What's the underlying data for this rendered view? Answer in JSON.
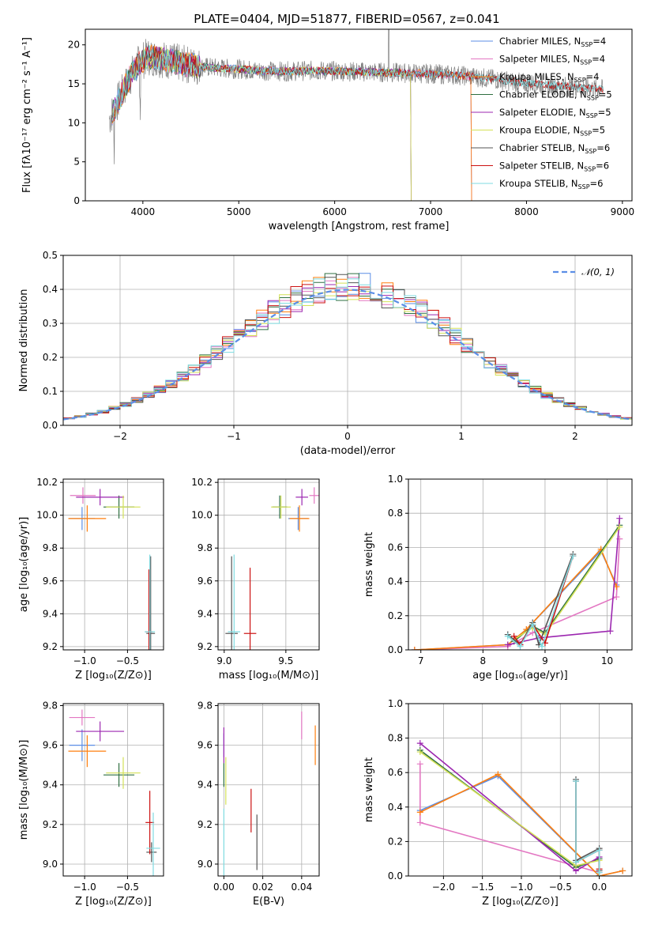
{
  "figure_title": "PLATE=0404, MJD=51877, FIBERID=0567, z=0.041",
  "colors": {
    "Chabrier MILES": "#5b8ee6",
    "Salpeter MILES": "#e377c2",
    "Kroupa MILES": "#ff7f0e",
    "Chabrier ELODIE": "#2e6f40",
    "Salpeter ELODIE": "#9c27b0",
    "Kroupa ELODIE": "#d4e157",
    "Chabrier STELIB": "#555555",
    "Salpeter STELIB": "#cc1111",
    "Kroupa STELIB": "#7fdbe0",
    "data": "#808080",
    "normal": "#5b8ee6"
  },
  "chart_data": [
    {
      "id": "spectrum",
      "type": "line",
      "title": "PLATE=0404, MJD=51877, FIBERID=0567, z=0.041",
      "xlabel": "wavelength [Angstrom, rest frame]",
      "ylabel": "Flux [fλ10⁻¹⁷ erg cm⁻² s⁻¹ A⁻¹]",
      "xlim": [
        3400,
        9100
      ],
      "ylim": [
        0,
        22
      ],
      "xticks": [
        4000,
        5000,
        6000,
        7000,
        8000,
        9000
      ],
      "yticks": [
        0,
        5,
        10,
        15,
        20
      ],
      "grid": false,
      "legend_position": "top-right",
      "legend": [
        {
          "name": "Chabrier MILES",
          "nssp": "4"
        },
        {
          "name": "Salpeter MILES",
          "nssp": "4"
        },
        {
          "name": "Kroupa MILES",
          "nssp": "4"
        },
        {
          "name": "Chabrier ELODIE",
          "nssp": "5"
        },
        {
          "name": "Salpeter ELODIE",
          "nssp": "5"
        },
        {
          "name": "Kroupa ELODIE",
          "nssp": "5"
        },
        {
          "name": "Chabrier STELIB",
          "nssp": "6"
        },
        {
          "name": "Salpeter STELIB",
          "nssp": "6"
        },
        {
          "name": "Kroupa STELIB",
          "nssp": "6"
        }
      ],
      "continuum": {
        "x": [
          3650,
          3750,
          3850,
          3950,
          4050,
          4200,
          4400,
          4600,
          4800,
          5000,
          5200,
          5500,
          5800,
          6100,
          6400,
          6700,
          7000,
          7300,
          7600,
          7900,
          8200,
          8500,
          8800
        ],
        "y": [
          10.5,
          13.0,
          15.5,
          17.5,
          18.5,
          18.2,
          17.6,
          17.2,
          17.0,
          16.9,
          16.7,
          16.6,
          16.7,
          16.6,
          16.5,
          16.4,
          16.3,
          16.1,
          15.7,
          15.2,
          14.9,
          14.6,
          14.3
        ]
      },
      "series": [
        {
          "name": "Chabrier MILES",
          "x_end": 7420
        },
        {
          "name": "Salpeter MILES",
          "x_end": 7420
        },
        {
          "name": "Kroupa MILES",
          "x_end": 7420
        },
        {
          "name": "Chabrier ELODIE",
          "x_end": 6790
        },
        {
          "name": "Salpeter ELODIE",
          "x_end": 6790
        },
        {
          "name": "Kroupa ELODIE",
          "x_end": 6790
        },
        {
          "name": "Chabrier STELIB",
          "x_end": 8800
        },
        {
          "name": "Salpeter STELIB",
          "x_end": 8800
        },
        {
          "name": "Kroupa STELIB",
          "x_end": 8800
        }
      ]
    },
    {
      "id": "residuals",
      "type": "histogram",
      "xlabel": "(data-model)/error",
      "ylabel": "Normed distribution",
      "xlim": [
        -2.5,
        2.5
      ],
      "ylim": [
        0,
        0.5
      ],
      "xticks": [
        -2,
        -1,
        0,
        1,
        2
      ],
      "yticks": [
        0.0,
        0.1,
        0.2,
        0.3,
        0.4,
        0.5
      ],
      "grid": true,
      "legend_label": "𝒩(0, 1)",
      "legend_position": "top-right",
      "bin_width": 0.1,
      "bin_start": -2.5,
      "bins": 50
    },
    {
      "id": "z-age",
      "type": "errorbar",
      "xlabel": "Z [log₁₀(Z/Z⊙)]",
      "ylabel": "age  [log₁₀(age/yr)]",
      "xlim": [
        -1.25,
        -0.08
      ],
      "ylim": [
        9.18,
        10.22
      ],
      "xticks": [
        -1.0,
        -0.5
      ],
      "yticks": [
        9.2,
        9.4,
        9.6,
        9.8,
        10.0,
        10.2
      ],
      "grid": true,
      "points": [
        {
          "series": "Chabrier MILES",
          "x": -1.03,
          "y": 9.98,
          "xerr": 0.15,
          "yerr": 0.07
        },
        {
          "series": "Salpeter MILES",
          "x": -1.02,
          "y": 10.12,
          "xerr": 0.15,
          "yerr": 0.05
        },
        {
          "series": "Kroupa MILES",
          "x": -0.97,
          "y": 9.98,
          "xerr": 0.22,
          "yerr": 0.08
        },
        {
          "series": "Chabrier ELODIE",
          "x": -0.6,
          "y": 10.05,
          "xerr": 0.18,
          "yerr": 0.07
        },
        {
          "series": "Salpeter ELODIE",
          "x": -0.82,
          "y": 10.11,
          "xerr": 0.28,
          "yerr": 0.05
        },
        {
          "series": "Kroupa ELODIE",
          "x": -0.55,
          "y": 10.05,
          "xerr": 0.2,
          "yerr": 0.07
        },
        {
          "series": "Chabrier STELIB",
          "x": -0.23,
          "y": 9.28,
          "xerr": 0.05,
          "yerr": 0.47
        },
        {
          "series": "Salpeter STELIB",
          "x": -0.25,
          "y": 9.29,
          "xerr": 0.04,
          "yerr": 0.38
        },
        {
          "series": "Kroupa STELIB",
          "x": -0.24,
          "y": 9.29,
          "xerr": 0.06,
          "yerr": 0.47
        }
      ]
    },
    {
      "id": "mass-age",
      "type": "errorbar",
      "xlabel": "mass [log₁₀(M/M⊙)]",
      "ylabel": "",
      "xlim": [
        8.95,
        9.77
      ],
      "ylim": [
        9.18,
        10.22
      ],
      "xticks": [
        9.0,
        9.5
      ],
      "yticks": [
        9.2,
        9.4,
        9.6,
        9.8,
        10.0,
        10.2
      ],
      "grid": true,
      "points": [
        {
          "series": "Chabrier MILES",
          "x": 9.6,
          "y": 9.98,
          "xerr": 0.08,
          "yerr": 0.07
        },
        {
          "series": "Salpeter MILES",
          "x": 9.73,
          "y": 10.12,
          "xerr": 0.04,
          "yerr": 0.05
        },
        {
          "series": "Kroupa MILES",
          "x": 9.61,
          "y": 9.98,
          "xerr": 0.08,
          "yerr": 0.08
        },
        {
          "series": "Chabrier ELODIE",
          "x": 9.45,
          "y": 10.05,
          "xerr": 0.06,
          "yerr": 0.07
        },
        {
          "series": "Salpeter ELODIE",
          "x": 9.63,
          "y": 10.11,
          "xerr": 0.05,
          "yerr": 0.05
        },
        {
          "series": "Kroupa ELODIE",
          "x": 9.46,
          "y": 10.05,
          "xerr": 0.08,
          "yerr": 0.07
        },
        {
          "series": "Chabrier STELIB",
          "x": 9.06,
          "y": 9.28,
          "xerr": 0.05,
          "yerr": 0.47
        },
        {
          "series": "Salpeter STELIB",
          "x": 9.21,
          "y": 9.28,
          "xerr": 0.05,
          "yerr": 0.4
        },
        {
          "series": "Kroupa STELIB",
          "x": 9.08,
          "y": 9.29,
          "xerr": 0.05,
          "yerr": 0.47
        }
      ]
    },
    {
      "id": "age-weight",
      "type": "line",
      "xlabel": "age  [log₁₀(age/yr)]",
      "ylabel": "mass weight",
      "xlim": [
        6.8,
        10.4
      ],
      "ylim": [
        0,
        1.0
      ],
      "xticks": [
        7,
        8,
        9,
        10
      ],
      "yticks": [
        0.0,
        0.2,
        0.4,
        0.6,
        0.8,
        1.0
      ],
      "grid": true,
      "series": [
        {
          "name": "Chabrier MILES",
          "x": [
            6.9,
            8.4,
            8.7,
            9.9,
            10.15
          ],
          "y": [
            0.0,
            0.03,
            0.12,
            0.58,
            0.38
          ]
        },
        {
          "name": "Salpeter MILES",
          "x": [
            6.9,
            8.4,
            8.8,
            10.15,
            10.2
          ],
          "y": [
            0.0,
            0.02,
            0.1,
            0.31,
            0.65
          ]
        },
        {
          "name": "Kroupa MILES",
          "x": [
            6.9,
            8.4,
            8.7,
            9.9,
            10.15
          ],
          "y": [
            0.0,
            0.03,
            0.12,
            0.59,
            0.37
          ]
        },
        {
          "name": "Chabrier ELODIE",
          "x": [
            8.5,
            8.8,
            9.0,
            10.2
          ],
          "y": [
            0.05,
            0.14,
            0.1,
            0.73
          ]
        },
        {
          "name": "Salpeter ELODIE",
          "x": [
            8.4,
            8.9,
            10.05,
            10.2
          ],
          "y": [
            0.03,
            0.07,
            0.11,
            0.77
          ]
        },
        {
          "name": "Kroupa ELODIE",
          "x": [
            8.5,
            8.8,
            9.0,
            10.2
          ],
          "y": [
            0.06,
            0.13,
            0.09,
            0.72
          ]
        },
        {
          "name": "Chabrier STELIB",
          "x": [
            8.4,
            8.6,
            8.8,
            8.9,
            9.45
          ],
          "y": [
            0.09,
            0.03,
            0.16,
            0.03,
            0.56
          ]
        },
        {
          "name": "Salpeter STELIB",
          "x": [
            8.5,
            8.6,
            8.8,
            9.0,
            9.45
          ],
          "y": [
            0.08,
            0.03,
            0.15,
            0.04,
            0.55
          ]
        },
        {
          "name": "Kroupa STELIB",
          "x": [
            8.4,
            8.6,
            8.8,
            8.95,
            9.45
          ],
          "y": [
            0.08,
            0.02,
            0.15,
            0.02,
            0.55
          ]
        }
      ]
    },
    {
      "id": "z-mass",
      "type": "errorbar",
      "xlabel": "Z [log₁₀(Z/Z⊙)]",
      "ylabel": "mass [log₁₀(M/M⊙)]",
      "xlim": [
        -1.25,
        -0.08
      ],
      "ylim": [
        8.94,
        9.81
      ],
      "xticks": [
        -1.0,
        -0.5
      ],
      "yticks": [
        9.0,
        9.2,
        9.4,
        9.6,
        9.8
      ],
      "grid": true,
      "points": [
        {
          "series": "Chabrier MILES",
          "x": -1.03,
          "y": 9.6,
          "xerr": 0.15,
          "yerr": 0.08
        },
        {
          "series": "Salpeter MILES",
          "x": -1.03,
          "y": 9.74,
          "xerr": 0.15,
          "yerr": 0.04
        },
        {
          "series": "Kroupa MILES",
          "x": -0.97,
          "y": 9.57,
          "xerr": 0.22,
          "yerr": 0.08
        },
        {
          "series": "Chabrier ELODIE",
          "x": -0.6,
          "y": 9.45,
          "xerr": 0.18,
          "yerr": 0.06
        },
        {
          "series": "Salpeter ELODIE",
          "x": -0.82,
          "y": 9.67,
          "xerr": 0.28,
          "yerr": 0.05
        },
        {
          "series": "Kroupa ELODIE",
          "x": -0.55,
          "y": 9.46,
          "xerr": 0.2,
          "yerr": 0.08
        },
        {
          "series": "Chabrier STELIB",
          "x": -0.22,
          "y": 9.06,
          "xerr": 0.06,
          "yerr": 0.05
        },
        {
          "series": "Salpeter STELIB",
          "x": -0.24,
          "y": 9.21,
          "xerr": 0.05,
          "yerr": 0.16
        },
        {
          "series": "Kroupa STELIB",
          "x": -0.2,
          "y": 9.08,
          "xerr": 0.08,
          "yerr": 0.18
        }
      ]
    },
    {
      "id": "ebv-mass",
      "type": "errorbar",
      "xlabel": "E(B-V)",
      "ylabel": "",
      "xlim": [
        -0.003,
        0.049
      ],
      "ylim": [
        8.94,
        9.81
      ],
      "xticks": [
        0.0,
        0.02,
        0.04
      ],
      "yticks": [
        9.0,
        9.2,
        9.4,
        9.6,
        9.8
      ],
      "grid": true,
      "points": [
        {
          "series": "Chabrier MILES",
          "x": 0.0,
          "y": 9.6,
          "xerr": 0,
          "yerr": 0.06
        },
        {
          "series": "Salpeter MILES",
          "x": 0.04,
          "y": 9.7,
          "xerr": 0,
          "yerr": 0.07
        },
        {
          "series": "Kroupa MILES",
          "x": 0.047,
          "y": 9.6,
          "xerr": 0,
          "yerr": 0.1
        },
        {
          "series": "Chabrier ELODIE",
          "x": 0.0,
          "y": 9.45,
          "xerr": 0,
          "yerr": 0.06
        },
        {
          "series": "Salpeter ELODIE",
          "x": 0.0,
          "y": 9.6,
          "xerr": 0,
          "yerr": 0.09
        },
        {
          "series": "Kroupa ELODIE",
          "x": 0.001,
          "y": 9.42,
          "xerr": 0,
          "yerr": 0.12
        },
        {
          "series": "Chabrier STELIB",
          "x": 0.017,
          "y": 9.11,
          "xerr": 0,
          "yerr": 0.14
        },
        {
          "series": "Salpeter STELIB",
          "x": 0.014,
          "y": 9.27,
          "xerr": 0,
          "yerr": 0.11
        },
        {
          "series": "Kroupa STELIB",
          "x": 0.0,
          "y": 9.1,
          "xerr": 0,
          "yerr": 0.18
        }
      ]
    },
    {
      "id": "z-weight",
      "type": "line",
      "xlabel": "Z [log₁₀(Z/Z⊙)]",
      "ylabel": "mass weight",
      "xlim": [
        -2.45,
        0.42
      ],
      "ylim": [
        0,
        1.0
      ],
      "xticks": [
        -2.0,
        -1.5,
        -1.0,
        -0.5,
        0.0
      ],
      "yticks": [
        0.0,
        0.2,
        0.4,
        0.6,
        0.8,
        1.0
      ],
      "grid": true,
      "series": [
        {
          "name": "Chabrier MILES",
          "x": [
            -2.3,
            -1.3,
            0.0,
            0.3
          ],
          "y": [
            0.38,
            0.58,
            0.0,
            0.03
          ]
        },
        {
          "name": "Salpeter MILES",
          "x": [
            -2.3,
            -2.3,
            0.0,
            0.0
          ],
          "y": [
            0.65,
            0.31,
            0.02,
            0.0
          ]
        },
        {
          "name": "Kroupa MILES",
          "x": [
            -2.3,
            -1.3,
            0.0,
            0.3
          ],
          "y": [
            0.37,
            0.59,
            0.0,
            0.03
          ]
        },
        {
          "name": "Chabrier ELODIE",
          "x": [
            -2.3,
            -0.3,
            0.0,
            0.0
          ],
          "y": [
            0.73,
            0.05,
            0.1,
            0.0
          ]
        },
        {
          "name": "Salpeter ELODIE",
          "x": [
            -2.3,
            -0.3,
            0.0,
            0.0
          ],
          "y": [
            0.77,
            0.03,
            0.11,
            0.0
          ]
        },
        {
          "name": "Kroupa ELODIE",
          "x": [
            -2.3,
            -0.3,
            0.0,
            0.0
          ],
          "y": [
            0.72,
            0.06,
            0.09,
            0.0
          ]
        },
        {
          "name": "Chabrier STELIB",
          "x": [
            -0.3,
            -0.3,
            0.0,
            0.0
          ],
          "y": [
            0.56,
            0.09,
            0.16,
            0.03
          ]
        },
        {
          "name": "Salpeter STELIB",
          "x": [
            -0.3,
            -0.3,
            0.0,
            0.0
          ],
          "y": [
            0.55,
            0.08,
            0.15,
            0.04
          ]
        },
        {
          "name": "Kroupa STELIB",
          "x": [
            -0.3,
            -0.3,
            0.0,
            0.0
          ],
          "y": [
            0.55,
            0.08,
            0.15,
            0.02
          ]
        }
      ]
    }
  ]
}
